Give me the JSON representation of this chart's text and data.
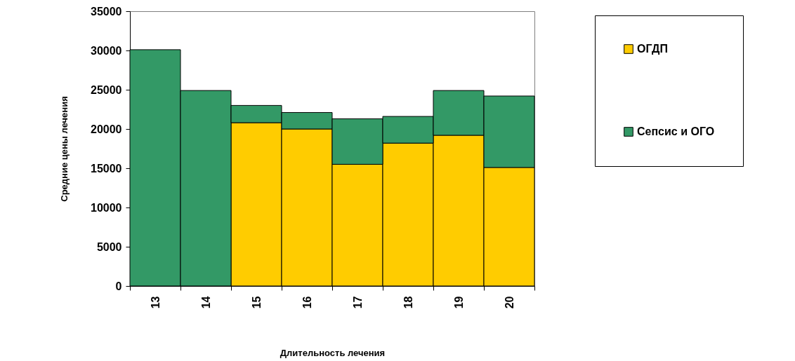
{
  "chart_data": {
    "type": "bar",
    "xlabel": "Длительность лечения",
    "ylabel": "Средние цены лечения",
    "categories": [
      "13",
      "14",
      "15",
      "16",
      "17",
      "18",
      "19",
      "20"
    ],
    "stacked": true,
    "series": [
      {
        "name": "ОГДП",
        "color": "#ffcc00",
        "values": [
          0,
          0,
          20800,
          20000,
          15500,
          18200,
          19200,
          15100
        ]
      },
      {
        "name": "Сепсис и ОГО",
        "color": "#339966",
        "values": [
          30100,
          24900,
          2200,
          2100,
          5800,
          3400,
          5700,
          9100
        ]
      }
    ],
    "ylim": [
      0,
      35000
    ],
    "yticks": [
      0,
      5000,
      10000,
      15000,
      20000,
      25000,
      30000,
      35000
    ],
    "grid": false,
    "legend": "right"
  }
}
